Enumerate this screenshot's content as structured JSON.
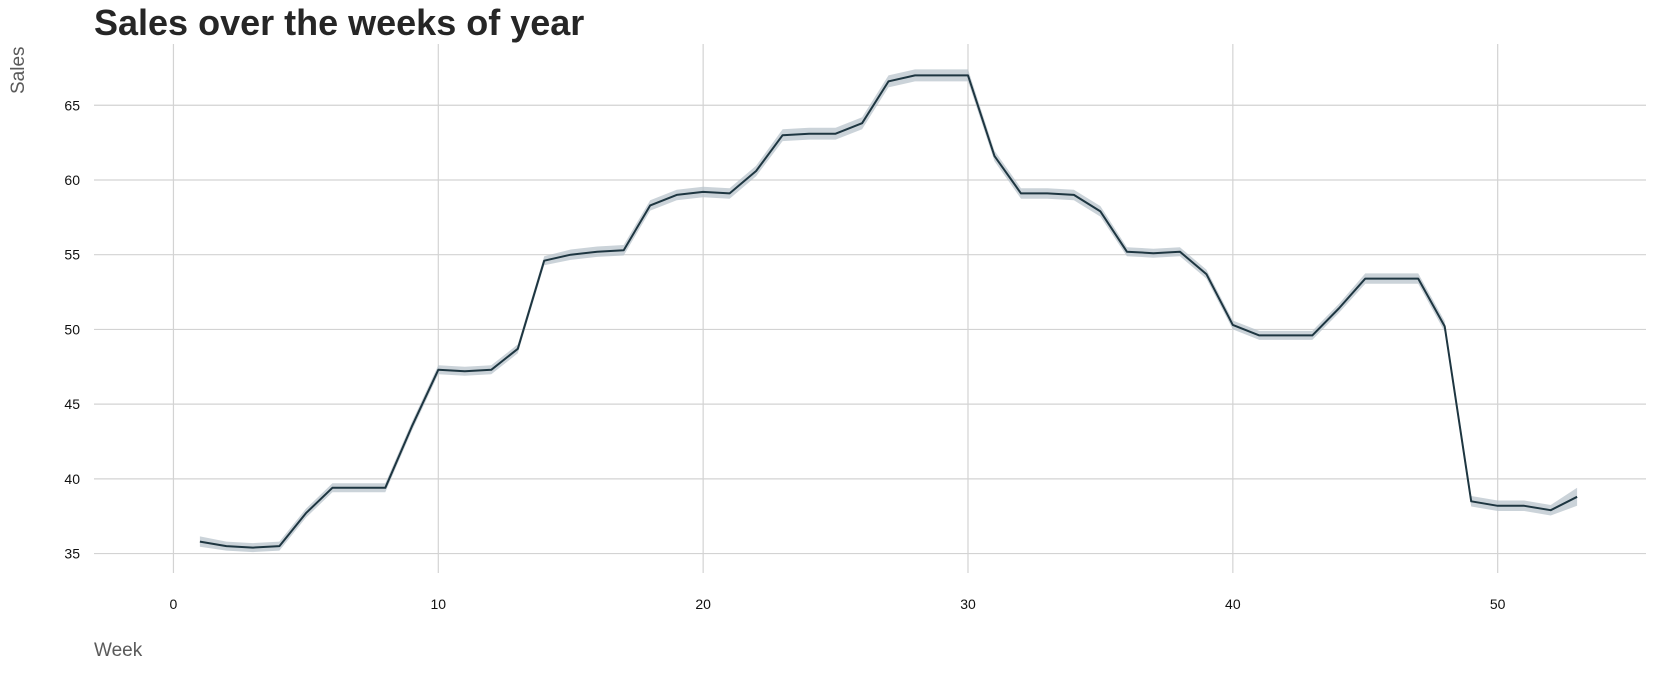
{
  "chart_data": {
    "type": "line",
    "title": "Sales over the weeks of year",
    "xlabel": "Week",
    "ylabel": "Sales",
    "xlim": [
      -3,
      55.6
    ],
    "ylim": [
      33.7,
      69.1
    ],
    "xticks": [
      0,
      10,
      20,
      30,
      40,
      50
    ],
    "yticks": [
      35,
      40,
      45,
      50,
      55,
      60,
      65
    ],
    "grid": true,
    "confidence_band": true,
    "colors": {
      "line": "#1e3641",
      "band": "#b9c4cc",
      "grid": "#d3d3d3"
    },
    "series": [
      {
        "x": [
          1,
          2,
          3,
          4,
          5,
          6,
          7,
          8,
          9,
          10,
          11,
          12,
          13,
          14,
          15,
          16,
          17,
          18,
          19,
          20,
          21,
          22,
          23,
          24,
          25,
          26,
          27,
          28,
          29,
          30,
          31,
          32,
          33,
          34,
          35,
          36,
          37,
          38,
          39,
          40,
          41,
          42,
          43,
          44,
          45,
          46,
          47,
          48,
          49,
          50,
          51,
          52,
          53
        ],
        "values": [
          35.8,
          35.5,
          35.4,
          35.5,
          37.7,
          39.4,
          39.4,
          39.4,
          43.5,
          47.3,
          47.2,
          47.3,
          48.7,
          54.6,
          55.0,
          55.2,
          55.3,
          58.3,
          59.0,
          59.2,
          59.1,
          60.6,
          63.0,
          63.1,
          63.1,
          63.8,
          66.6,
          67.0,
          67.0,
          67.0,
          61.6,
          59.1,
          59.1,
          59.0,
          57.9,
          55.2,
          55.1,
          55.2,
          53.7,
          50.3,
          49.6,
          49.6,
          49.6,
          51.4,
          53.4,
          53.4,
          53.4,
          50.2,
          38.5,
          38.2,
          38.2,
          37.9,
          38.8
        ],
        "band": [
          0.35,
          0.3,
          0.3,
          0.3,
          0.3,
          0.3,
          0.3,
          0.3,
          0.3,
          0.3,
          0.3,
          0.3,
          0.3,
          0.3,
          0.35,
          0.35,
          0.35,
          0.35,
          0.35,
          0.35,
          0.35,
          0.35,
          0.4,
          0.4,
          0.4,
          0.4,
          0.4,
          0.4,
          0.4,
          0.4,
          0.35,
          0.35,
          0.35,
          0.35,
          0.35,
          0.3,
          0.3,
          0.3,
          0.3,
          0.3,
          0.3,
          0.3,
          0.3,
          0.3,
          0.35,
          0.35,
          0.35,
          0.35,
          0.35,
          0.35,
          0.35,
          0.35,
          0.6
        ]
      }
    ]
  }
}
